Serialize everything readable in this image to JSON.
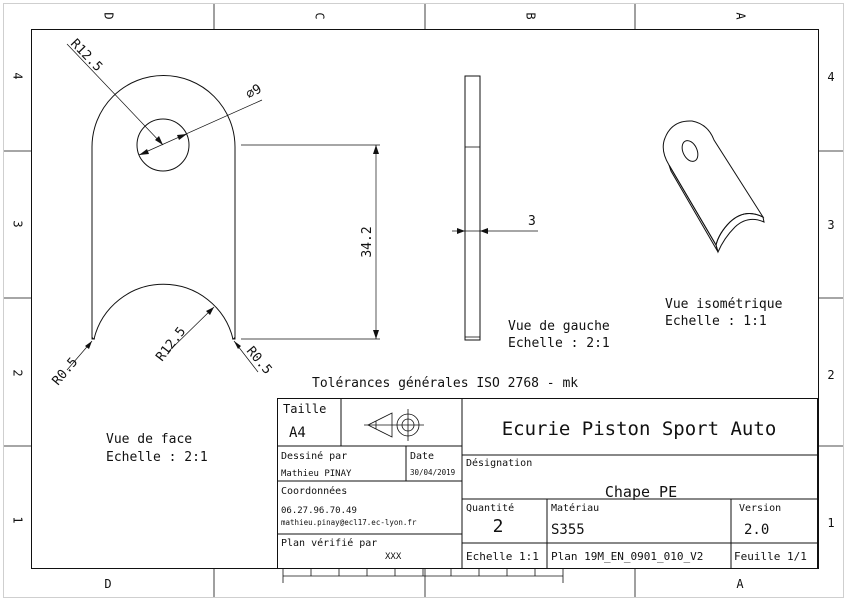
{
  "border": {
    "columns_top": [
      "D",
      "C",
      "B",
      "A"
    ],
    "columns_bottom": [
      "D",
      "A"
    ],
    "rows": [
      "4",
      "3",
      "2",
      "1"
    ]
  },
  "front_view": {
    "dim_top_radius": "R12.5",
    "dim_hole": "⌀9",
    "dim_height": "34.2",
    "dim_fillet_left": "R0.5",
    "dim_bottom_radius": "R12.5",
    "dim_fillet_right": "R0.5",
    "label": "Vue de face",
    "scale": "Echelle :  2:1"
  },
  "left_view": {
    "dim_thickness": "3",
    "label": "Vue de gauche",
    "scale": "Echelle :  2:1"
  },
  "iso_view": {
    "label": "Vue isométrique",
    "scale": "Echelle :  1:1"
  },
  "tolerances": "Tolérances générales ISO 2768 - mk",
  "title_block": {
    "size_label": "Taille",
    "size_value": "A4",
    "company": "Ecurie Piston Sport Auto",
    "drawn_by_label": "Dessiné par",
    "drawn_by": "Mathieu PINAY",
    "date_label": "Date",
    "date": "30/04/2019",
    "designation_label": "Désignation",
    "designation": "Chape PE",
    "contact_label": "Coordonnées",
    "phone": "06.27.96.70.49",
    "email": "mathieu.pinay@ecl17.ec-lyon.fr",
    "quantity_label": "Quantité",
    "quantity": "2",
    "material_label": "Matériau",
    "material": "S355",
    "version_label": "Version",
    "version": "2.0",
    "checked_label": "Plan vérifié par",
    "checked_by": "XXX",
    "scale": "Echelle 1:1",
    "plan": "Plan  19M_EN_0901_010_V2",
    "sheet": "Feuille 1/1"
  }
}
